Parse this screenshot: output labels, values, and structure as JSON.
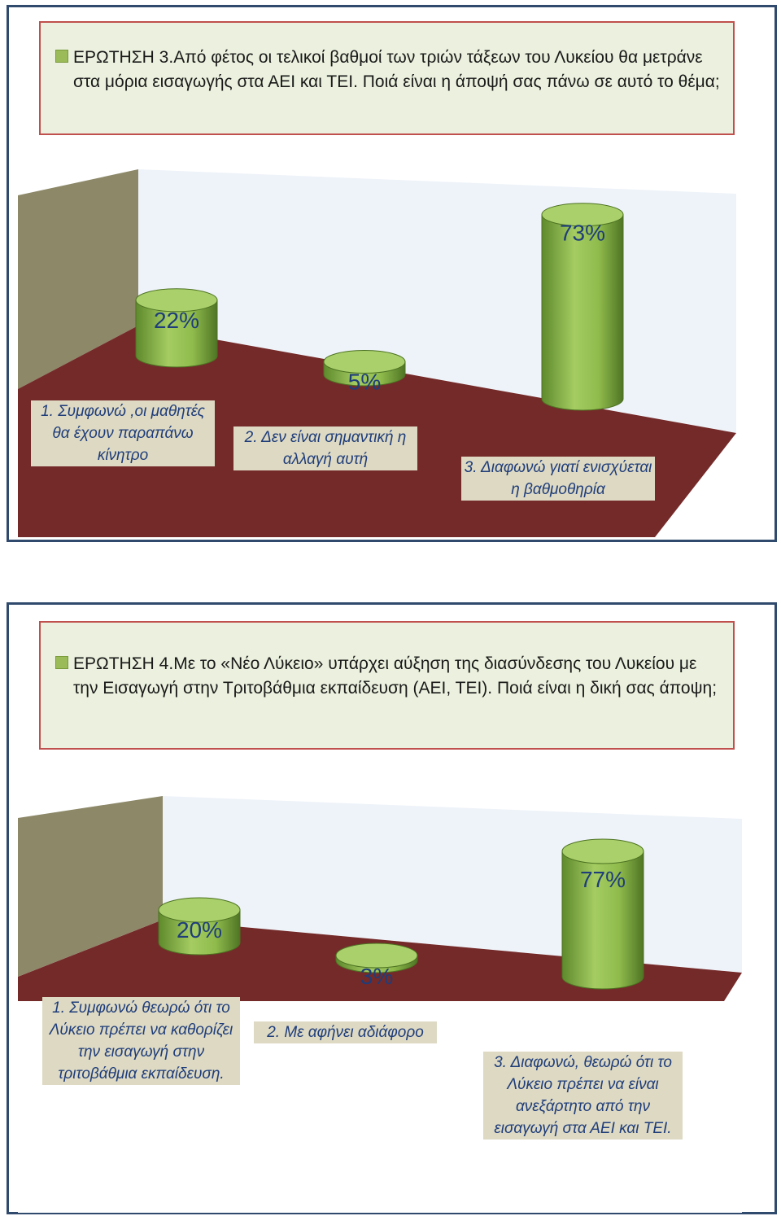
{
  "colors": {
    "panel_border": "#2f4a6d",
    "question_bg": "#ebf1de",
    "question_border": "#c0504d",
    "legend_marker": "#9bbb59",
    "back_wall": "#eef3f9",
    "side_wall": "#8c8868",
    "floor": "#742a29",
    "cylinder": "#8ab448",
    "category_bg": "#ddd9c3",
    "category_text": "#1f3d7a"
  },
  "chart_data": [
    {
      "type": "bar",
      "title": "ΕΡΩΤΗΣΗ 3.Από φέτος οι τελικοί βαθμοί των τριών τάξεων του Λυκείου θα μετράνε στα μόρια εισαγωγής στα ΑΕΙ και ΤΕΙ. Ποιά είναι η άποψή σας πάνω σε αυτό το θέμα;",
      "categories": [
        "1. Συμφωνώ ,οι μαθητές θα έχουν παραπάνω κίνητρο",
        "2. Δεν είναι σημαντική η αλλαγή αυτή",
        "3. Διαφωνώ γιατί ενισχύεται η βαθμοθηρία"
      ],
      "values": [
        22,
        5,
        73
      ],
      "labels": [
        "22%",
        "5%",
        "73%"
      ],
      "ylim": [
        0,
        100
      ]
    },
    {
      "type": "bar",
      "title": "ΕΡΩΤΗΣΗ 4.Με το «Νέο Λύκειο» υπάρχει αύξηση της διασύνδεσης του Λυκείου με την Εισαγωγή στην Τριτοβάθμια εκπαίδευση (ΑΕΙ, ΤΕΙ). Ποιά είναι η δική σας άποψη;",
      "categories": [
        "1. Συμφωνώ θεωρώ ότι το Λύκειο πρέπει να καθορίζει την εισαγωγή στην τριτοβάθμια εκπαίδευση.",
        "2. Με αφήνει αδιάφορο",
        "3. Διαφωνώ, θεωρώ ότι το Λύκειο πρέπει να είναι ανεξάρτητο από την εισαγωγή στα ΑΕΙ και ΤΕΙ."
      ],
      "values": [
        20,
        3,
        77
      ],
      "labels": [
        "20%",
        "3%",
        "77%"
      ],
      "ylim": [
        0,
        100
      ]
    }
  ]
}
